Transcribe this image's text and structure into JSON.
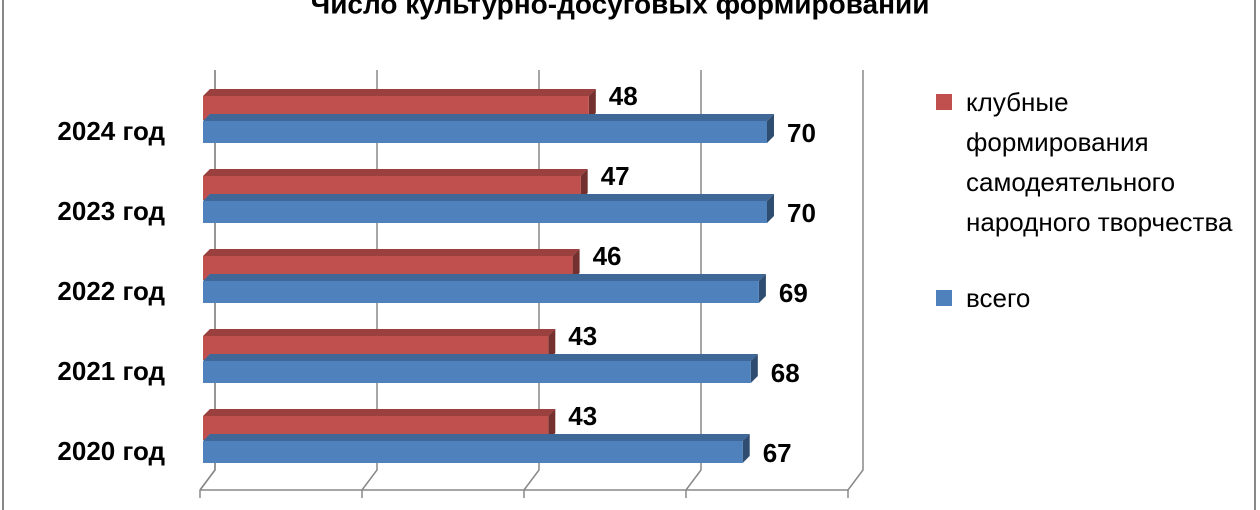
{
  "chart_data": {
    "type": "bar",
    "orientation": "horizontal",
    "title": "Число культурно-досуговых формирований",
    "categories": [
      "2020 год",
      "2021 год",
      "2022 год",
      "2023 год",
      "2024 год"
    ],
    "series": [
      {
        "name": "клубные формирования самодеятельного народного творчества",
        "color": "#c0504d",
        "values": [
          43,
          43,
          46,
          47,
          48
        ]
      },
      {
        "name": "всего",
        "color": "#4f81bd",
        "values": [
          67,
          68,
          69,
          70,
          70
        ]
      }
    ],
    "xlim": [
      0,
      80
    ],
    "xticks": [
      0,
      20,
      40,
      60,
      80
    ],
    "grid": true
  }
}
